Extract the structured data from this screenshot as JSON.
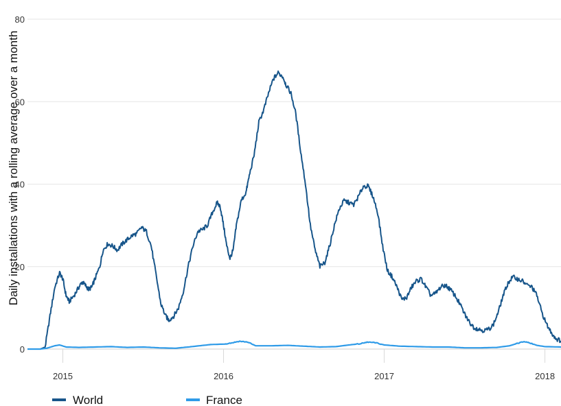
{
  "chart_data": {
    "type": "line",
    "title": "",
    "xlabel": "",
    "ylabel": "Daily installations with a rolling average over a month",
    "xlim": [
      2014.78,
      2018.1
    ],
    "ylim": [
      0,
      80
    ],
    "x_ticks": [
      2015,
      2016,
      2017,
      2018
    ],
    "x_tick_labels": [
      "2015",
      "2016",
      "2017",
      "2018"
    ],
    "y_ticks": [
      0,
      20,
      40,
      60,
      80
    ],
    "y_tick_labels": [
      "0",
      "20",
      "40",
      "60",
      "80"
    ],
    "grid": "horizontal",
    "legend_position": "bottom-left",
    "series": [
      {
        "name": "World",
        "color": "#17558a",
        "points": [
          [
            2014.78,
            0
          ],
          [
            2014.86,
            0
          ],
          [
            2014.89,
            0.5
          ],
          [
            2014.92,
            8
          ],
          [
            2014.95,
            15
          ],
          [
            2014.98,
            18.5
          ],
          [
            2015.0,
            17
          ],
          [
            2015.02,
            13
          ],
          [
            2015.04,
            11.5
          ],
          [
            2015.07,
            13
          ],
          [
            2015.1,
            15
          ],
          [
            2015.12,
            16.3
          ],
          [
            2015.14,
            15.5
          ],
          [
            2015.16,
            14.5
          ],
          [
            2015.18,
            15
          ],
          [
            2015.2,
            17
          ],
          [
            2015.23,
            20
          ],
          [
            2015.25,
            24
          ],
          [
            2015.28,
            25.5
          ],
          [
            2015.31,
            25
          ],
          [
            2015.34,
            24
          ],
          [
            2015.37,
            25.5
          ],
          [
            2015.4,
            26.5
          ],
          [
            2015.43,
            27.5
          ],
          [
            2015.46,
            28
          ],
          [
            2015.49,
            29.5
          ],
          [
            2015.52,
            28.5
          ],
          [
            2015.55,
            25
          ],
          [
            2015.58,
            18
          ],
          [
            2015.61,
            11
          ],
          [
            2015.64,
            8
          ],
          [
            2015.66,
            7
          ],
          [
            2015.69,
            8
          ],
          [
            2015.72,
            10
          ],
          [
            2015.75,
            14
          ],
          [
            2015.78,
            20
          ],
          [
            2015.81,
            25
          ],
          [
            2015.84,
            28.5
          ],
          [
            2015.87,
            29
          ],
          [
            2015.9,
            30
          ],
          [
            2015.93,
            33
          ],
          [
            2015.96,
            35.5
          ],
          [
            2015.98,
            34.5
          ],
          [
            2016.0,
            30
          ],
          [
            2016.02,
            25
          ],
          [
            2016.04,
            22
          ],
          [
            2016.06,
            24
          ],
          [
            2016.08,
            30
          ],
          [
            2016.11,
            36
          ],
          [
            2016.14,
            38
          ],
          [
            2016.16,
            42
          ],
          [
            2016.19,
            47
          ],
          [
            2016.22,
            55
          ],
          [
            2016.25,
            58
          ],
          [
            2016.28,
            62
          ],
          [
            2016.31,
            65.5
          ],
          [
            2016.34,
            67
          ],
          [
            2016.37,
            66
          ],
          [
            2016.39,
            64
          ],
          [
            2016.42,
            62
          ],
          [
            2016.45,
            57
          ],
          [
            2016.48,
            48
          ],
          [
            2016.51,
            40
          ],
          [
            2016.54,
            30
          ],
          [
            2016.57,
            24
          ],
          [
            2016.6,
            20
          ],
          [
            2016.63,
            21
          ],
          [
            2016.66,
            25
          ],
          [
            2016.69,
            30
          ],
          [
            2016.72,
            34
          ],
          [
            2016.75,
            36
          ],
          [
            2016.78,
            35.5
          ],
          [
            2016.81,
            35
          ],
          [
            2016.84,
            37
          ],
          [
            2016.87,
            39.5
          ],
          [
            2016.9,
            39.5
          ],
          [
            2016.93,
            37
          ],
          [
            2016.96,
            33
          ],
          [
            2016.99,
            25
          ],
          [
            2017.02,
            19
          ],
          [
            2017.05,
            17.5
          ],
          [
            2017.08,
            15
          ],
          [
            2017.11,
            12
          ],
          [
            2017.14,
            12.5
          ],
          [
            2017.17,
            15
          ],
          [
            2017.2,
            16.5
          ],
          [
            2017.23,
            17
          ],
          [
            2017.26,
            15
          ],
          [
            2017.29,
            13
          ],
          [
            2017.32,
            13.5
          ],
          [
            2017.35,
            15
          ],
          [
            2017.38,
            15.5
          ],
          [
            2017.41,
            14.5
          ],
          [
            2017.44,
            13
          ],
          [
            2017.47,
            11
          ],
          [
            2017.5,
            8.5
          ],
          [
            2017.53,
            6.5
          ],
          [
            2017.56,
            5.2
          ],
          [
            2017.59,
            4.8
          ],
          [
            2017.62,
            4.5
          ],
          [
            2017.65,
            4.8
          ],
          [
            2017.68,
            6
          ],
          [
            2017.71,
            9
          ],
          [
            2017.74,
            13
          ],
          [
            2017.77,
            16
          ],
          [
            2017.8,
            17.5
          ],
          [
            2017.83,
            17
          ],
          [
            2017.86,
            16.5
          ],
          [
            2017.89,
            15.5
          ],
          [
            2017.92,
            15
          ],
          [
            2017.95,
            13
          ],
          [
            2017.98,
            9
          ],
          [
            2018.01,
            6
          ],
          [
            2018.04,
            4
          ],
          [
            2018.07,
            2.5
          ],
          [
            2018.1,
            2
          ]
        ]
      },
      {
        "name": "France",
        "color": "#2f9be8",
        "points": [
          [
            2014.78,
            0
          ],
          [
            2014.86,
            0
          ],
          [
            2014.9,
            0.2
          ],
          [
            2014.95,
            0.8
          ],
          [
            2014.98,
            1
          ],
          [
            2015.02,
            0.5
          ],
          [
            2015.1,
            0.4
          ],
          [
            2015.2,
            0.5
          ],
          [
            2015.3,
            0.6
          ],
          [
            2015.4,
            0.4
          ],
          [
            2015.5,
            0.5
          ],
          [
            2015.6,
            0.3
          ],
          [
            2015.7,
            0.2
          ],
          [
            2015.78,
            0.5
          ],
          [
            2015.85,
            0.8
          ],
          [
            2015.92,
            1.1
          ],
          [
            2016.0,
            1.2
          ],
          [
            2016.05,
            1.5
          ],
          [
            2016.1,
            1.9
          ],
          [
            2016.15,
            1.7
          ],
          [
            2016.2,
            0.8
          ],
          [
            2016.3,
            0.8
          ],
          [
            2016.4,
            0.9
          ],
          [
            2016.5,
            0.7
          ],
          [
            2016.6,
            0.5
          ],
          [
            2016.7,
            0.6
          ],
          [
            2016.78,
            1.0
          ],
          [
            2016.85,
            1.3
          ],
          [
            2016.9,
            1.7
          ],
          [
            2016.95,
            1.5
          ],
          [
            2017.0,
            1.0
          ],
          [
            2017.1,
            0.7
          ],
          [
            2017.2,
            0.6
          ],
          [
            2017.3,
            0.5
          ],
          [
            2017.4,
            0.5
          ],
          [
            2017.5,
            0.3
          ],
          [
            2017.6,
            0.3
          ],
          [
            2017.7,
            0.4
          ],
          [
            2017.78,
            0.8
          ],
          [
            2017.83,
            1.4
          ],
          [
            2017.87,
            1.8
          ],
          [
            2017.9,
            1.6
          ],
          [
            2017.95,
            0.9
          ],
          [
            2018.0,
            0.6
          ],
          [
            2018.1,
            0.5
          ]
        ]
      }
    ]
  }
}
